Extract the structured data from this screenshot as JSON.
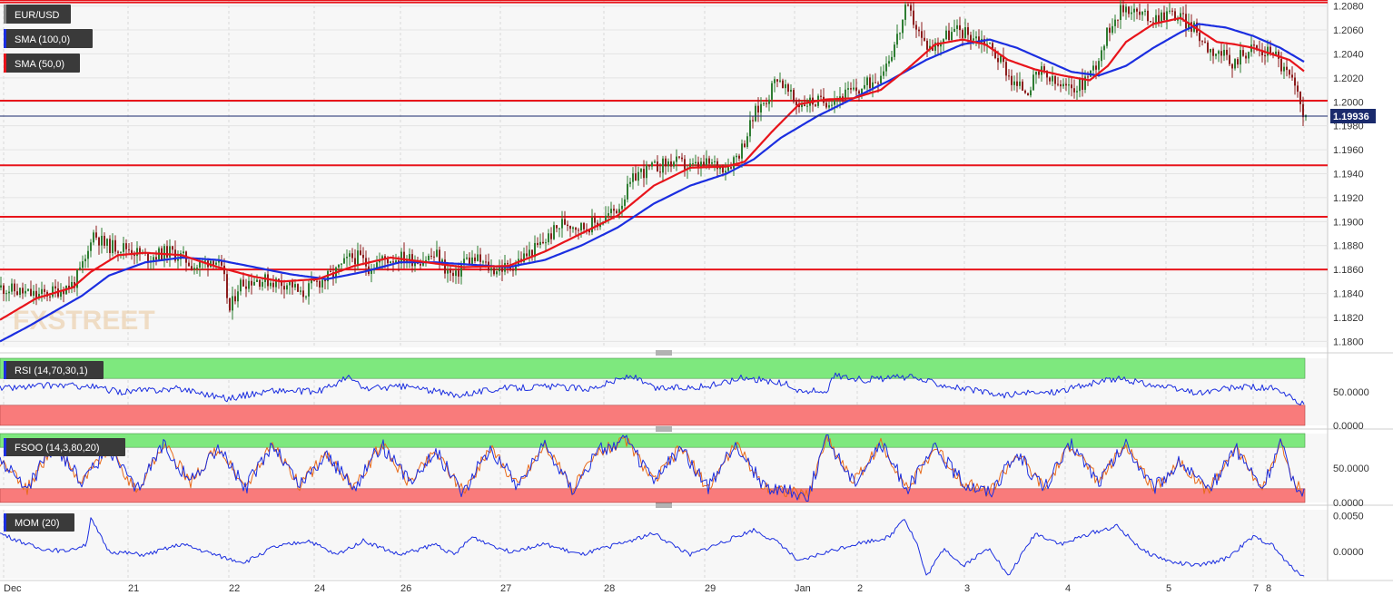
{
  "instrument_tag": "EUR/USD",
  "sma100_tag": "SMA (100,0)",
  "sma50_tag": "SMA (50,0)",
  "watermark": "FXSTREET",
  "price_label": "1.19936",
  "rsi_tag": "RSI (14,70,30,1)",
  "fsoo_tag": "FSOO (14,3,80,20)",
  "mom_tag": "MOM (20)",
  "colors": {
    "candle_up": "#2e7d32",
    "candle_down": "#8d1e1e",
    "sma50": "#e8141b",
    "sma100": "#1b2ee0",
    "level_line": "#e8141b",
    "indicator_line": "#1b2ee0",
    "overbought_zone": "#7ee87e",
    "oversold_zone": "#f97b7b",
    "plot_bg": "#f7f7f7"
  },
  "chart_data": [
    {
      "type": "candlestick",
      "panel": "price",
      "y_ticks": [
        "1.1800",
        "1.1820",
        "1.1840",
        "1.1860",
        "1.1880",
        "1.1900",
        "1.1920",
        "1.1940",
        "1.1960",
        "1.1980",
        "1.2000",
        "1.2020",
        "1.2040",
        "1.2060",
        "1.2080"
      ],
      "ylim": [
        1.1795,
        1.2085
      ],
      "x_tick_labels": [
        "Dec",
        "21",
        "22",
        "24",
        "26",
        "27",
        "28",
        "29",
        "Jan",
        "2",
        "3",
        "4",
        "5",
        "7",
        "8"
      ],
      "last_price": 1.19936,
      "horizontal_levels": [
        1.2085,
        1.2083,
        1.2001,
        1.1947,
        1.1904,
        1.186
      ],
      "waypoints": [
        [
          0,
          1.1845
        ],
        [
          40,
          1.1838
        ],
        [
          60,
          1.1842
        ],
        [
          80,
          1.1848
        ],
        [
          95,
          1.187
        ],
        [
          100,
          1.1892
        ],
        [
          115,
          1.188
        ],
        [
          140,
          1.1878
        ],
        [
          160,
          1.187
        ],
        [
          185,
          1.1875
        ],
        [
          200,
          1.187
        ],
        [
          215,
          1.1862
        ],
        [
          235,
          1.187
        ],
        [
          245,
          1.1855
        ],
        [
          252,
          1.1825
        ],
        [
          262,
          1.1848
        ],
        [
          280,
          1.1852
        ],
        [
          300,
          1.185
        ],
        [
          320,
          1.1848
        ],
        [
          330,
          1.1838
        ],
        [
          345,
          1.1848
        ],
        [
          365,
          1.1855
        ],
        [
          385,
          1.187
        ],
        [
          395,
          1.187
        ],
        [
          405,
          1.1862
        ],
        [
          420,
          1.1868
        ],
        [
          440,
          1.187
        ],
        [
          460,
          1.1868
        ],
        [
          480,
          1.1872
        ],
        [
          490,
          1.186
        ],
        [
          500,
          1.1852
        ],
        [
          510,
          1.1868
        ],
        [
          525,
          1.1868
        ],
        [
          540,
          1.186
        ],
        [
          560,
          1.1862
        ],
        [
          575,
          1.187
        ],
        [
          590,
          1.1878
        ],
        [
          600,
          1.1885
        ],
        [
          620,
          1.19
        ],
        [
          640,
          1.1895
        ],
        [
          660,
          1.19
        ],
        [
          680,
          1.1912
        ],
        [
          700,
          1.194
        ],
        [
          720,
          1.1945
        ],
        [
          740,
          1.195
        ],
        [
          760,
          1.1945
        ],
        [
          780,
          1.1948
        ],
        [
          800,
          1.1946
        ],
        [
          815,
          1.196
        ],
        [
          830,
          1.199
        ],
        [
          845,
          1.2005
        ],
        [
          855,
          1.2022
        ],
        [
          865,
          1.201
        ],
        [
          875,
          1.1998
        ],
        [
          890,
          1.2
        ],
        [
          905,
          1.2
        ],
        [
          925,
          1.2005
        ],
        [
          945,
          1.201
        ],
        [
          965,
          1.202
        ],
        [
          980,
          1.204
        ],
        [
          990,
          1.206
        ],
        [
          997,
          1.2078
        ],
        [
          1005,
          1.2068
        ],
        [
          1015,
          1.205
        ],
        [
          1025,
          1.2045
        ],
        [
          1040,
          1.2055
        ],
        [
          1055,
          1.206
        ],
        [
          1070,
          1.2055
        ],
        [
          1085,
          1.205
        ],
        [
          1095,
          1.204
        ],
        [
          1105,
          1.203
        ],
        [
          1115,
          1.2015
        ],
        [
          1130,
          1.201
        ],
        [
          1145,
          1.2025
        ],
        [
          1160,
          1.2015
        ],
        [
          1175,
          1.201
        ],
        [
          1190,
          1.2015
        ],
        [
          1205,
          1.203
        ],
        [
          1215,
          1.205
        ],
        [
          1225,
          1.207
        ],
        [
          1240,
          1.208
        ],
        [
          1255,
          1.2072
        ],
        [
          1270,
          1.207
        ],
        [
          1285,
          1.2075
        ],
        [
          1300,
          1.207
        ],
        [
          1315,
          1.206
        ],
        [
          1330,
          1.2045
        ],
        [
          1345,
          1.204
        ],
        [
          1355,
          1.2028
        ],
        [
          1365,
          1.204
        ],
        [
          1380,
          1.2045
        ],
        [
          1390,
          1.204
        ],
        [
          1400,
          1.2045
        ],
        [
          1410,
          1.203
        ],
        [
          1420,
          1.202
        ],
        [
          1430,
          1.2
        ],
        [
          1435,
          1.199
        ],
        [
          1437,
          1.1994
        ]
      ]
    },
    {
      "type": "line",
      "panel": "price",
      "name": "SMA (50,0)",
      "waypoints": [
        [
          0,
          1.1818
        ],
        [
          40,
          1.1836
        ],
        [
          80,
          1.1845
        ],
        [
          100,
          1.1858
        ],
        [
          130,
          1.1872
        ],
        [
          160,
          1.1874
        ],
        [
          200,
          1.1872
        ],
        [
          240,
          1.1862
        ],
        [
          280,
          1.1854
        ],
        [
          310,
          1.185
        ],
        [
          350,
          1.1852
        ],
        [
          390,
          1.1863
        ],
        [
          430,
          1.187
        ],
        [
          470,
          1.1866
        ],
        [
          510,
          1.1862
        ],
        [
          560,
          1.1863
        ],
        [
          600,
          1.1875
        ],
        [
          640,
          1.189
        ],
        [
          680,
          1.1905
        ],
        [
          720,
          1.193
        ],
        [
          760,
          1.1945
        ],
        [
          800,
          1.1946
        ],
        [
          820,
          1.195
        ],
        [
          850,
          1.1975
        ],
        [
          880,
          1.1998
        ],
        [
          910,
          1.2002
        ],
        [
          940,
          1.2003
        ],
        [
          970,
          1.201
        ],
        [
          1000,
          1.2028
        ],
        [
          1030,
          1.2048
        ],
        [
          1060,
          1.2052
        ],
        [
          1085,
          1.2048
        ],
        [
          1110,
          1.2035
        ],
        [
          1140,
          1.2027
        ],
        [
          1170,
          1.2022
        ],
        [
          1200,
          1.2018
        ],
        [
          1220,
          1.203
        ],
        [
          1240,
          1.205
        ],
        [
          1270,
          1.2065
        ],
        [
          1300,
          1.207
        ],
        [
          1320,
          1.206
        ],
        [
          1340,
          1.205
        ],
        [
          1360,
          1.2048
        ],
        [
          1380,
          1.2045
        ],
        [
          1400,
          1.204
        ],
        [
          1420,
          1.2035
        ],
        [
          1437,
          1.2025
        ]
      ]
    },
    {
      "type": "line",
      "panel": "price",
      "name": "SMA (100,0)",
      "waypoints": [
        [
          0,
          1.18
        ],
        [
          30,
          1.1812
        ],
        [
          60,
          1.1825
        ],
        [
          90,
          1.1838
        ],
        [
          120,
          1.1855
        ],
        [
          160,
          1.1866
        ],
        [
          200,
          1.187
        ],
        [
          240,
          1.1868
        ],
        [
          280,
          1.1862
        ],
        [
          320,
          1.1856
        ],
        [
          360,
          1.1852
        ],
        [
          400,
          1.1858
        ],
        [
          440,
          1.1866
        ],
        [
          480,
          1.1866
        ],
        [
          520,
          1.1864
        ],
        [
          560,
          1.1862
        ],
        [
          600,
          1.1868
        ],
        [
          640,
          1.188
        ],
        [
          680,
          1.1895
        ],
        [
          720,
          1.1915
        ],
        [
          760,
          1.193
        ],
        [
          800,
          1.194
        ],
        [
          830,
          1.1952
        ],
        [
          860,
          1.197
        ],
        [
          900,
          1.1988
        ],
        [
          940,
          1.2003
        ],
        [
          980,
          1.2018
        ],
        [
          1020,
          1.2035
        ],
        [
          1060,
          1.2048
        ],
        [
          1090,
          1.2052
        ],
        [
          1120,
          1.2045
        ],
        [
          1150,
          1.2035
        ],
        [
          1180,
          1.2025
        ],
        [
          1210,
          1.2022
        ],
        [
          1240,
          1.203
        ],
        [
          1270,
          1.2045
        ],
        [
          1300,
          1.2058
        ],
        [
          1320,
          1.2065
        ],
        [
          1350,
          1.2062
        ],
        [
          1380,
          1.2055
        ],
        [
          1410,
          1.2045
        ],
        [
          1437,
          1.2033
        ]
      ]
    },
    {
      "type": "line",
      "panel": "RSI",
      "y_ticks": [
        "0.0000",
        "50.0000"
      ],
      "ylim": [
        0,
        100
      ],
      "overbought": 70,
      "oversold": 30,
      "waypoints": [
        [
          0,
          55
        ],
        [
          60,
          60
        ],
        [
          100,
          58
        ],
        [
          130,
          50
        ],
        [
          200,
          55
        ],
        [
          250,
          40
        ],
        [
          300,
          52
        ],
        [
          350,
          50
        ],
        [
          385,
          72
        ],
        [
          400,
          55
        ],
        [
          450,
          58
        ],
        [
          500,
          45
        ],
        [
          550,
          55
        ],
        [
          600,
          58
        ],
        [
          650,
          55
        ],
        [
          695,
          74
        ],
        [
          720,
          55
        ],
        [
          780,
          58
        ],
        [
          820,
          72
        ],
        [
          870,
          60
        ],
        [
          880,
          50
        ],
        [
          910,
          52
        ],
        [
          920,
          75
        ],
        [
          950,
          68
        ],
        [
          1000,
          72
        ],
        [
          1060,
          55
        ],
        [
          1100,
          45
        ],
        [
          1160,
          50
        ],
        [
          1230,
          70
        ],
        [
          1290,
          55
        ],
        [
          1320,
          48
        ],
        [
          1370,
          58
        ],
        [
          1400,
          55
        ],
        [
          1420,
          42
        ],
        [
          1437,
          30
        ]
      ]
    },
    {
      "type": "line",
      "panel": "FSOO",
      "y_ticks": [
        "0.0000",
        "50.0000"
      ],
      "ylim": [
        0,
        100
      ],
      "overbought": 80,
      "oversold": 20,
      "waypoints": [
        [
          0,
          60
        ],
        [
          30,
          20
        ],
        [
          60,
          85
        ],
        [
          90,
          30
        ],
        [
          120,
          80
        ],
        [
          150,
          15
        ],
        [
          180,
          85
        ],
        [
          210,
          30
        ],
        [
          240,
          80
        ],
        [
          270,
          20
        ],
        [
          300,
          85
        ],
        [
          330,
          25
        ],
        [
          360,
          70
        ],
        [
          390,
          20
        ],
        [
          420,
          85
        ],
        [
          450,
          30
        ],
        [
          480,
          75
        ],
        [
          510,
          15
        ],
        [
          540,
          80
        ],
        [
          570,
          25
        ],
        [
          600,
          85
        ],
        [
          630,
          20
        ],
        [
          660,
          75
        ],
        [
          690,
          90
        ],
        [
          720,
          30
        ],
        [
          750,
          80
        ],
        [
          780,
          20
        ],
        [
          810,
          85
        ],
        [
          840,
          25
        ],
        [
          870,
          15
        ],
        [
          890,
          10
        ],
        [
          910,
          95
        ],
        [
          940,
          30
        ],
        [
          970,
          85
        ],
        [
          1000,
          20
        ],
        [
          1030,
          80
        ],
        [
          1060,
          30
        ],
        [
          1090,
          15
        ],
        [
          1120,
          70
        ],
        [
          1150,
          20
        ],
        [
          1180,
          85
        ],
        [
          1210,
          30
        ],
        [
          1240,
          85
        ],
        [
          1270,
          20
        ],
        [
          1300,
          60
        ],
        [
          1330,
          15
        ],
        [
          1360,
          80
        ],
        [
          1390,
          20
        ],
        [
          1410,
          85
        ],
        [
          1425,
          30
        ],
        [
          1437,
          15
        ]
      ]
    },
    {
      "type": "line",
      "panel": "MOM",
      "y_ticks": [
        "0.0000",
        "0.0050"
      ],
      "ylim": [
        -0.0038,
        0.0058
      ],
      "waypoints": [
        [
          0,
          0.0025
        ],
        [
          40,
          0.0005
        ],
        [
          70,
          0.0
        ],
        [
          95,
          0.001
        ],
        [
          100,
          0.0045
        ],
        [
          120,
          0.0
        ],
        [
          160,
          -0.0005
        ],
        [
          200,
          0.001
        ],
        [
          250,
          -0.001
        ],
        [
          270,
          -0.0015
        ],
        [
          300,
          0.0005
        ],
        [
          340,
          0.0015
        ],
        [
          370,
          -0.0005
        ],
        [
          400,
          0.0015
        ],
        [
          440,
          -0.0005
        ],
        [
          480,
          0.001
        ],
        [
          500,
          -0.0005
        ],
        [
          520,
          0.002
        ],
        [
          560,
          0.0
        ],
        [
          600,
          0.001
        ],
        [
          640,
          -0.0005
        ],
        [
          680,
          0.001
        ],
        [
          720,
          0.0025
        ],
        [
          760,
          -0.0005
        ],
        [
          800,
          0.0015
        ],
        [
          830,
          0.003
        ],
        [
          860,
          0.001
        ],
        [
          880,
          -0.0015
        ],
        [
          900,
          -0.0005
        ],
        [
          940,
          0.001
        ],
        [
          980,
          0.002
        ],
        [
          995,
          0.0048
        ],
        [
          1010,
          0.001
        ],
        [
          1020,
          -0.0035
        ],
        [
          1040,
          0.0005
        ],
        [
          1060,
          -0.002
        ],
        [
          1090,
          0.0005
        ],
        [
          1110,
          -0.0035
        ],
        [
          1140,
          0.0025
        ],
        [
          1170,
          0.001
        ],
        [
          1200,
          0.0025
        ],
        [
          1230,
          0.0035
        ],
        [
          1260,
          0.0
        ],
        [
          1290,
          -0.0015
        ],
        [
          1320,
          -0.002
        ],
        [
          1350,
          -0.001
        ],
        [
          1380,
          0.002
        ],
        [
          1400,
          0.001
        ],
        [
          1420,
          -0.002
        ],
        [
          1437,
          -0.0035
        ]
      ]
    }
  ]
}
